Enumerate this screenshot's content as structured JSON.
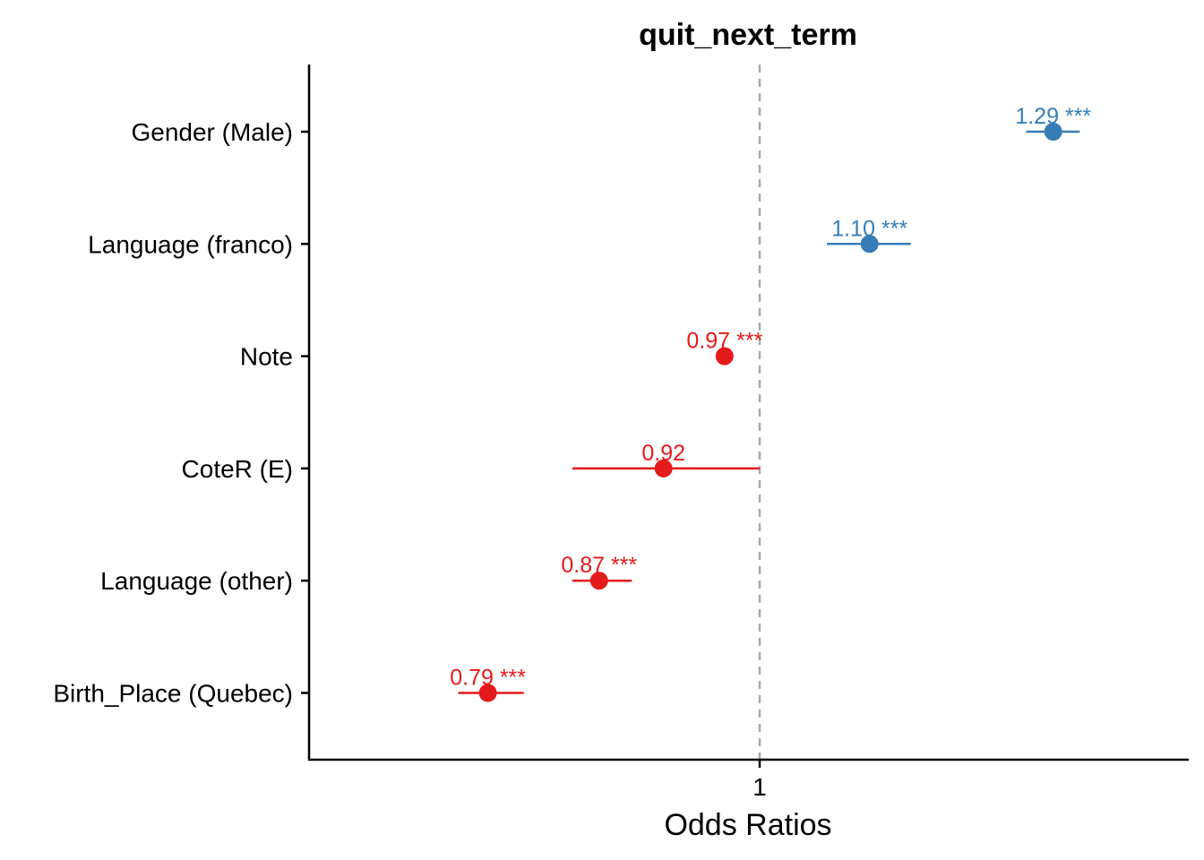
{
  "chart_data": {
    "type": "scatter",
    "subtype": "forest-plot",
    "title": "quit_next_term",
    "xlabel": "Odds Ratios",
    "ylabel": "",
    "x_ticks": [
      "1"
    ],
    "x_scale": "log",
    "reference_line": 1,
    "grid": false,
    "legend": "none",
    "colors": {
      "positive": "#377EB8",
      "negative": "#E41A1C",
      "reference": "#AAAAAA"
    },
    "terms": [
      {
        "label": "Gender (Male)",
        "estimate": 1.29,
        "ci_low": 1.26,
        "ci_high": 1.32,
        "value_label": "1.29 ***",
        "direction": "positive"
      },
      {
        "label": "Language (franco)",
        "estimate": 1.1,
        "ci_low": 1.06,
        "ci_high": 1.14,
        "value_label": "1.10 ***",
        "direction": "positive"
      },
      {
        "label": "Note",
        "estimate": 0.97,
        "ci_low": 0.966,
        "ci_high": 0.974,
        "value_label": "0.97 ***",
        "direction": "negative"
      },
      {
        "label": "CoteR (E)",
        "estimate": 0.92,
        "ci_low": 0.85,
        "ci_high": 1.0,
        "value_label": "0.92",
        "direction": "negative"
      },
      {
        "label": "Language (other)",
        "estimate": 0.87,
        "ci_low": 0.85,
        "ci_high": 0.895,
        "value_label": "0.87 ***",
        "direction": "negative"
      },
      {
        "label": "Birth_Place (Quebec)",
        "estimate": 0.79,
        "ci_low": 0.77,
        "ci_high": 0.815,
        "value_label": "0.79 ***",
        "direction": "negative"
      }
    ]
  }
}
